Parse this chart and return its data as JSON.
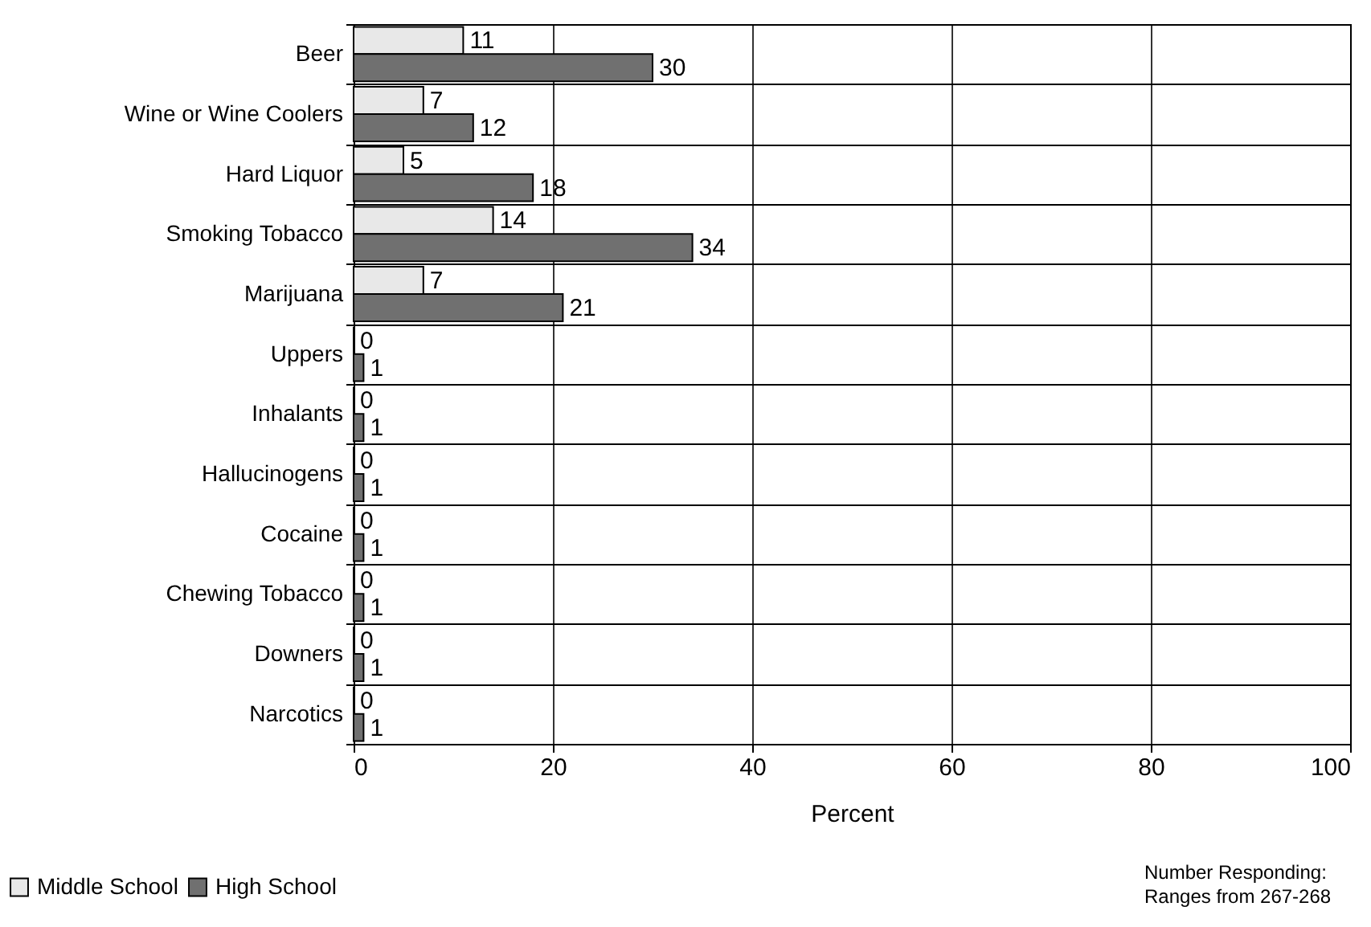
{
  "chart_data": {
    "type": "bar",
    "orientation": "horizontal",
    "categories": [
      "Beer",
      "Wine or Wine Coolers",
      "Hard Liquor",
      "Smoking Tobacco",
      "Marijuana",
      "Uppers",
      "Inhalants",
      "Hallucinogens",
      "Cocaine",
      "Chewing Tobacco",
      "Downers",
      "Narcotics"
    ],
    "series": [
      {
        "name": "Middle School",
        "color": "#e8e8e8",
        "values": [
          11,
          7,
          5,
          14,
          7,
          0,
          0,
          0,
          0,
          0,
          0,
          0
        ]
      },
      {
        "name": "High School",
        "color": "#707070",
        "values": [
          30,
          12,
          18,
          34,
          21,
          1,
          1,
          1,
          1,
          1,
          1,
          1
        ]
      }
    ],
    "xlabel": "Percent",
    "xlim": [
      0,
      100
    ],
    "xticks": [
      0,
      20,
      40,
      60,
      80,
      100
    ],
    "grid": true,
    "legend": "bottom left",
    "data_labels": true,
    "annotations": [
      "Number Responding: Ranges from 267-268"
    ]
  }
}
